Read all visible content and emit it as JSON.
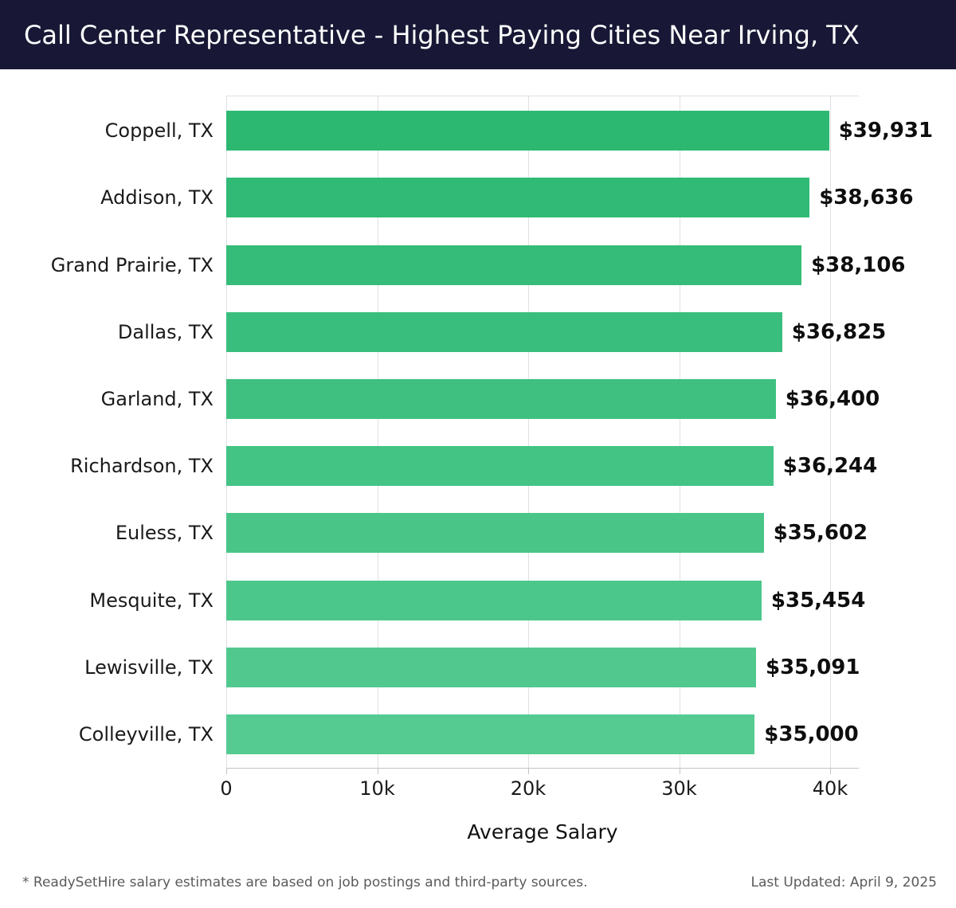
{
  "header": {
    "title": "Call Center Representative - Highest Paying Cities Near Irving, TX"
  },
  "chart_data": {
    "type": "bar",
    "orientation": "horizontal",
    "title": "Call Center Representative - Highest Paying Cities Near Irving, TX",
    "categories": [
      "Coppell, TX",
      "Addison, TX",
      "Grand Prairie, TX",
      "Dallas, TX",
      "Garland, TX",
      "Richardson, TX",
      "Euless, TX",
      "Mesquite, TX",
      "Lewisville, TX",
      "Colleyville, TX"
    ],
    "values": [
      39931,
      38636,
      38106,
      36825,
      36400,
      36244,
      35602,
      35454,
      35091,
      35000
    ],
    "value_labels": [
      "$39,931",
      "$38,636",
      "$38,106",
      "$36,825",
      "$36,400",
      "$36,244",
      "$35,602",
      "$35,454",
      "$35,091",
      "$35,000"
    ],
    "xlabel": "Average Salary",
    "ylabel": "",
    "xlim": [
      0,
      40000
    ],
    "x_tick_values": [
      0,
      10000,
      20000,
      30000,
      40000
    ],
    "x_tick_labels": [
      "0",
      "10k",
      "20k",
      "30k",
      "40k"
    ],
    "grid": "vertical",
    "legend": "none",
    "bar_color_start": "#2db872",
    "bar_color_end": "#55cb92",
    "gridline_color": "#e0e0e0",
    "axis_color": "#c4c4c4",
    "header_bg_color": "#181836",
    "title_color": "#ffffff"
  },
  "footer": {
    "disclaimer": "* ReadySetHire salary estimates are based on job postings and third-party sources.",
    "last_updated": "Last Updated: April 9, 2025"
  }
}
